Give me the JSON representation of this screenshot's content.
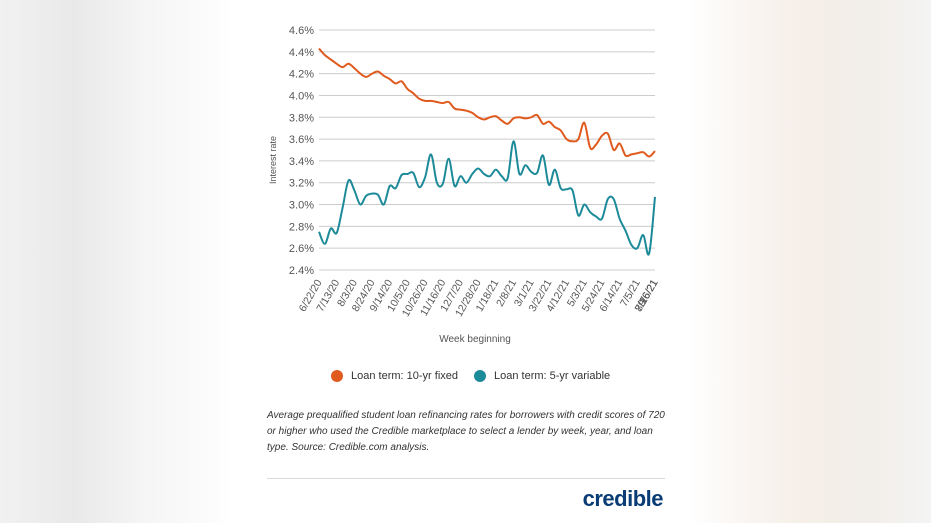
{
  "colors": {
    "fixed": "#e05a1e",
    "variable": "#1d8a99",
    "grid": "#cccccc",
    "brand": "#0a3d75"
  },
  "chart_data": {
    "type": "line",
    "ylabel": "Interest rate",
    "xlabel": "Week beginning",
    "ylim": [
      2.4,
      4.6
    ],
    "yticks": [
      "2.4%",
      "2.6%",
      "2.8%",
      "3.0%",
      "3.2%",
      "3.4%",
      "3.6%",
      "3.8%",
      "4.0%",
      "4.2%",
      "4.4%",
      "4.6%"
    ],
    "ytick_values": [
      2.4,
      2.6,
      2.8,
      3.0,
      3.2,
      3.4,
      3.6,
      3.8,
      4.0,
      4.2,
      4.4,
      4.6
    ],
    "x_tick_labels": [
      "6/22/20",
      "7/13/20",
      "8/3/20",
      "8/24/20",
      "9/14/20",
      "10/5/20",
      "10/26/20",
      "11/16/20",
      "12/7/20",
      "12/28/20",
      "1/18/21",
      "2/8/21",
      "3/1/21",
      "3/22/21",
      "4/12/21",
      "5/3/21",
      "5/24/21",
      "6/14/21",
      "7/5/21",
      "7/26/21",
      "8/16/21",
      "9/6/21"
    ],
    "grid": true,
    "legend_position": "bottom",
    "series": [
      {
        "name": "Loan term: 10-yr fixed",
        "color": "#e05a1e",
        "values": [
          4.43,
          4.37,
          4.33,
          4.29,
          4.26,
          4.29,
          4.25,
          4.2,
          4.17,
          4.2,
          4.22,
          4.18,
          4.15,
          4.11,
          4.13,
          4.06,
          4.02,
          3.97,
          3.95,
          3.95,
          3.94,
          3.93,
          3.94,
          3.88,
          3.87,
          3.86,
          3.84,
          3.8,
          3.78,
          3.8,
          3.81,
          3.77,
          3.74,
          3.79,
          3.8,
          3.79,
          3.8,
          3.82,
          3.74,
          3.76,
          3.71,
          3.68,
          3.6,
          3.58,
          3.6,
          3.75,
          3.52,
          3.55,
          3.63,
          3.65,
          3.5,
          3.56,
          3.45,
          3.46,
          3.47,
          3.48,
          3.44,
          3.49
        ]
      },
      {
        "name": "Loan term: 5-yr variable",
        "color": "#1d8a99",
        "values": [
          2.75,
          2.64,
          2.78,
          2.74,
          2.97,
          3.22,
          3.13,
          3.0,
          3.08,
          3.1,
          3.09,
          3.0,
          3.17,
          3.15,
          3.27,
          3.28,
          3.29,
          3.16,
          3.25,
          3.46,
          3.2,
          3.19,
          3.42,
          3.17,
          3.26,
          3.2,
          3.28,
          3.33,
          3.28,
          3.26,
          3.32,
          3.26,
          3.24,
          3.58,
          3.28,
          3.36,
          3.3,
          3.29,
          3.45,
          3.18,
          3.32,
          3.15,
          3.14,
          3.13,
          2.9,
          3.0,
          2.93,
          2.89,
          2.87,
          3.05,
          3.05,
          2.87,
          2.76,
          2.63,
          2.6,
          2.72,
          2.55,
          3.07
        ]
      }
    ]
  },
  "caption": "Average prequalified student loan refinancing rates for borrowers with credit scores of 720 or higher who used the Credible marketplace to select a lender by week, year, and loan type. Source: Credible.com analysis.",
  "logo_text": "credible"
}
